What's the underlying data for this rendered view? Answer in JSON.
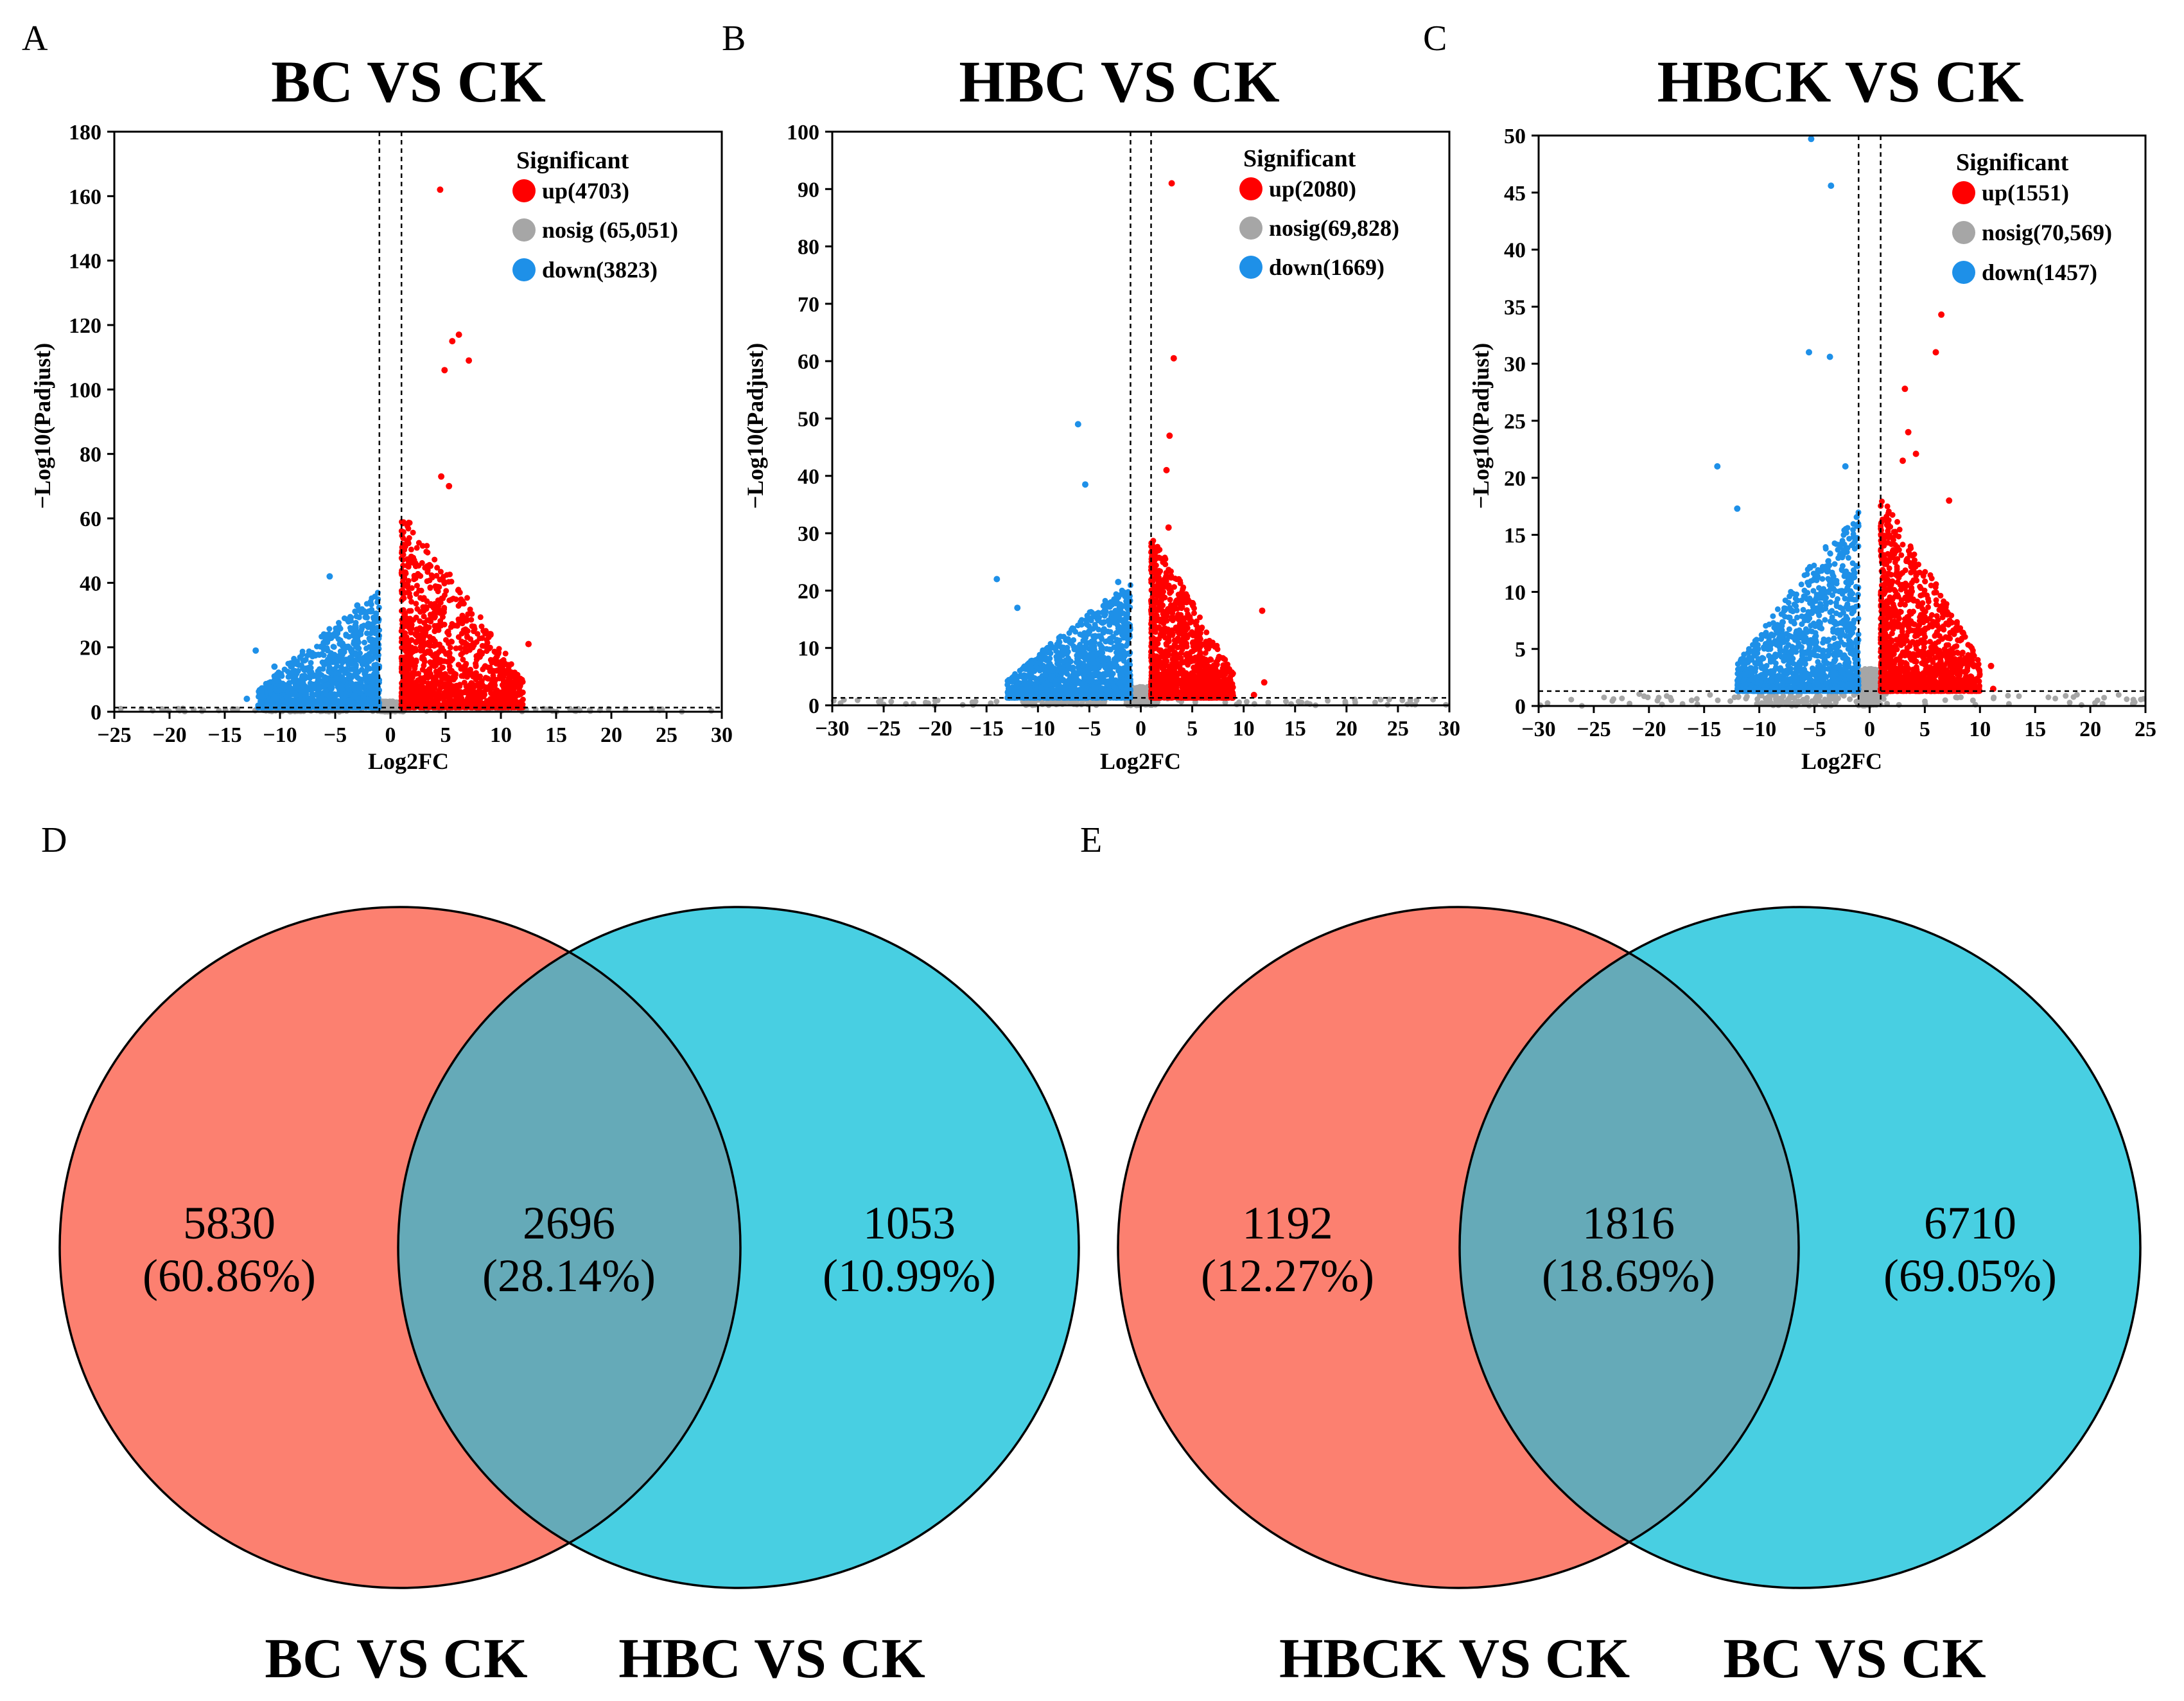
{
  "chart_data": [
    {
      "type": "scatter",
      "panel": "A",
      "title": "BC VS CK",
      "xlabel": "Log2FC",
      "ylabel": "−Log10(Padjust)",
      "xlim": [
        -25,
        30
      ],
      "ylim": [
        0,
        180
      ],
      "xticks": [
        -25,
        -20,
        -15,
        -10,
        -5,
        0,
        5,
        10,
        15,
        20,
        25,
        30
      ],
      "yticks": [
        0,
        20,
        40,
        60,
        80,
        100,
        120,
        140,
        160,
        180
      ],
      "fc_threshold": 1,
      "p_threshold": 1.3,
      "legend_title": "Significant",
      "legend": [
        {
          "key": "up",
          "label": "up(4703)",
          "color": "#ff0000"
        },
        {
          "key": "nosig",
          "label": "nosig (65,051)",
          "color": "#a6a6a6"
        },
        {
          "key": "down",
          "label": "down(3823)",
          "color": "#1e90e8"
        }
      ],
      "notable_points": {
        "up": [
          [
            4.5,
            162
          ],
          [
            6.2,
            117
          ],
          [
            5.6,
            115
          ],
          [
            7.1,
            109
          ],
          [
            4.9,
            106
          ],
          [
            4.6,
            73
          ],
          [
            5.3,
            70
          ],
          [
            12.5,
            21
          ],
          [
            11.1,
            2
          ]
        ],
        "down": [
          [
            -5.5,
            42
          ],
          [
            -12.2,
            19
          ],
          [
            -13,
            4
          ],
          [
            -3,
            33
          ],
          [
            -10.5,
            14
          ]
        ]
      },
      "cluster_extent": {
        "up": {
          "x": [
            1,
            12
          ],
          "y_max": 60
        },
        "down": {
          "x": [
            -12,
            -1
          ],
          "y_max": 36
        }
      }
    },
    {
      "type": "scatter",
      "panel": "B",
      "title": "HBC VS CK",
      "xlabel": "Log2FC",
      "ylabel": "−Log10(Padjust)",
      "xlim": [
        -30,
        30
      ],
      "ylim": [
        0,
        100
      ],
      "xticks": [
        -30,
        -25,
        -20,
        -15,
        -10,
        -5,
        0,
        5,
        10,
        15,
        20,
        25,
        30
      ],
      "yticks": [
        0,
        10,
        20,
        30,
        40,
        50,
        60,
        70,
        80,
        90,
        100
      ],
      "fc_threshold": 1,
      "p_threshold": 1.3,
      "legend_title": "Significant",
      "legend": [
        {
          "key": "up",
          "label": "up(2080)",
          "color": "#ff0000"
        },
        {
          "key": "nosig",
          "label": "nosig(69,828)",
          "color": "#a6a6a6"
        },
        {
          "key": "down",
          "label": "down(1669)",
          "color": "#1e90e8"
        }
      ],
      "notable_points": {
        "up": [
          [
            3,
            91
          ],
          [
            3.2,
            60.5
          ],
          [
            2.8,
            47
          ],
          [
            2.5,
            41
          ],
          [
            2.7,
            31
          ],
          [
            11.8,
            16.5
          ],
          [
            12,
            4
          ],
          [
            11,
            1.8
          ]
        ],
        "down": [
          [
            -6.1,
            49
          ],
          [
            -5.4,
            38.5
          ],
          [
            -14,
            22
          ],
          [
            -2.2,
            21.5
          ],
          [
            -12,
            17
          ]
        ]
      },
      "cluster_extent": {
        "up": {
          "x": [
            1,
            9
          ],
          "y_max": 28
        },
        "down": {
          "x": [
            -13,
            -1
          ],
          "y_max": 20
        }
      }
    },
    {
      "type": "scatter",
      "panel": "C",
      "title": "HBCK VS CK",
      "xlabel": "Log2FC",
      "ylabel": "−Log10(Padjust)",
      "xlim": [
        -30,
        25
      ],
      "ylim": [
        0,
        50
      ],
      "xticks": [
        -30,
        -25,
        -20,
        -15,
        -10,
        -5,
        0,
        5,
        10,
        15,
        20,
        25
      ],
      "yticks": [
        0,
        5,
        10,
        15,
        20,
        25,
        30,
        35,
        40,
        45,
        50
      ],
      "fc_threshold": 1,
      "p_threshold": 1.3,
      "legend_title": "Significant",
      "legend": [
        {
          "key": "up",
          "label": "up(1551)",
          "color": "#ff0000"
        },
        {
          "key": "nosig",
          "label": "nosig(70,569)",
          "color": "#a6a6a6"
        },
        {
          "key": "down",
          "label": "down(1457)",
          "color": "#1e90e8"
        }
      ],
      "notable_points": {
        "up": [
          [
            6.5,
            34.3
          ],
          [
            6,
            31
          ],
          [
            3.2,
            27.8
          ],
          [
            3.5,
            24
          ],
          [
            4.2,
            22.1
          ],
          [
            3,
            21.5
          ],
          [
            7.2,
            18
          ],
          [
            11,
            3.5
          ],
          [
            11.2,
            1.5
          ]
        ],
        "down": [
          [
            -5.3,
            49.7
          ],
          [
            -3.5,
            45.6
          ],
          [
            -5.5,
            31
          ],
          [
            -13.8,
            21
          ],
          [
            -12,
            17.3
          ],
          [
            -3.6,
            30.6
          ],
          [
            -2.2,
            21
          ]
        ]
      },
      "cluster_extent": {
        "up": {
          "x": [
            1,
            10
          ],
          "y_max": 17
        },
        "down": {
          "x": [
            -12,
            -1
          ],
          "y_max": 16
        }
      }
    },
    {
      "type": "venn",
      "panel": "D",
      "sets": [
        "BC VS CK",
        "HBC VS CK"
      ],
      "regions": [
        {
          "region": "BC VS CK only",
          "count": "5830",
          "percent": "(60.86%)"
        },
        {
          "region": "intersection",
          "count": "2696",
          "percent": "(28.14%)"
        },
        {
          "region": "HBC VS CK only",
          "count": "1053",
          "percent": "(10.99%)"
        }
      ],
      "colors": {
        "left": "#fc8070",
        "right": "#48cfe2",
        "overlap": "#65aab8"
      }
    },
    {
      "type": "venn",
      "panel": "E",
      "sets": [
        "HBCK VS CK",
        "BC VS CK"
      ],
      "regions": [
        {
          "region": "HBCK VS CK only",
          "count": "1192",
          "percent": "(12.27%)"
        },
        {
          "region": "intersection",
          "count": "1816",
          "percent": "(18.69%)"
        },
        {
          "region": "BC VS CK only",
          "count": "6710",
          "percent": "(69.05%)"
        }
      ],
      "colors": {
        "left": "#fc8070",
        "right": "#48cfe2",
        "overlap": "#65aab8"
      }
    }
  ]
}
